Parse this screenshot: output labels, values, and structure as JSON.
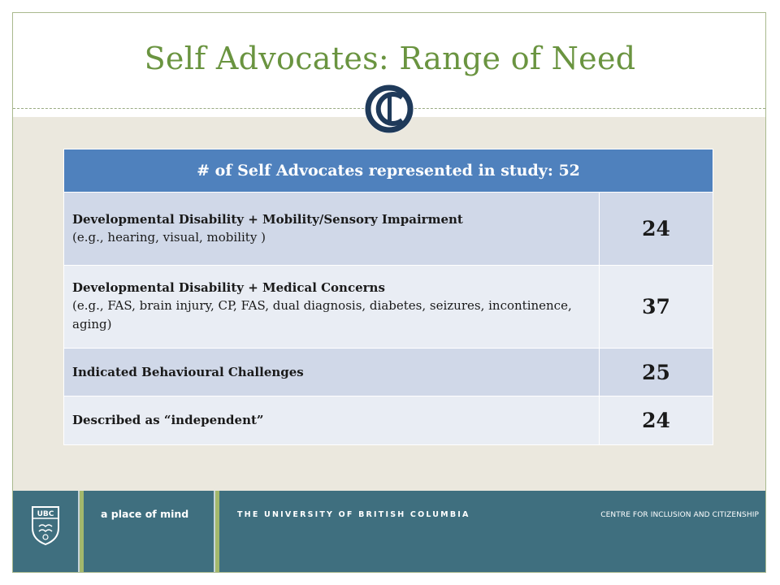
{
  "slide": {
    "title": "Self Advocates: Range of Need",
    "logo_icon": "cic-logo-icon"
  },
  "table": {
    "header": "# of Self Advocates represented in study: 52",
    "rows": [
      {
        "label": "Developmental Disability + Mobility/Sensory Impairment",
        "detail": "(e.g., hearing, visual, mobility )",
        "value": "24"
      },
      {
        "label": "Developmental Disability + Medical  Concerns",
        "detail": "(e.g., FAS, brain injury, CP, FAS, dual diagnosis,  diabetes, seizures, incontinence,  aging)",
        "value": "37"
      },
      {
        "label": "Indicated Behavioural Challenges",
        "detail": "",
        "value": "25"
      },
      {
        "label": "Described as “independent”",
        "detail": "",
        "value": "24"
      }
    ]
  },
  "footer": {
    "ubc_logo_text": "UBC",
    "tagline": "a place of mind",
    "university": "THE UNIVERSITY OF BRITISH COLUMBIA",
    "centre": "CENTRE FOR INCLUSION AND CITIZENSHIP"
  },
  "colors": {
    "title": "#6a9440",
    "header_bg": "#4f81bd",
    "row_dark": "#d0d8e8",
    "row_light": "#e9edf4",
    "footer_bg": "#3f6f7f",
    "accent_green": "#a3b86c"
  }
}
